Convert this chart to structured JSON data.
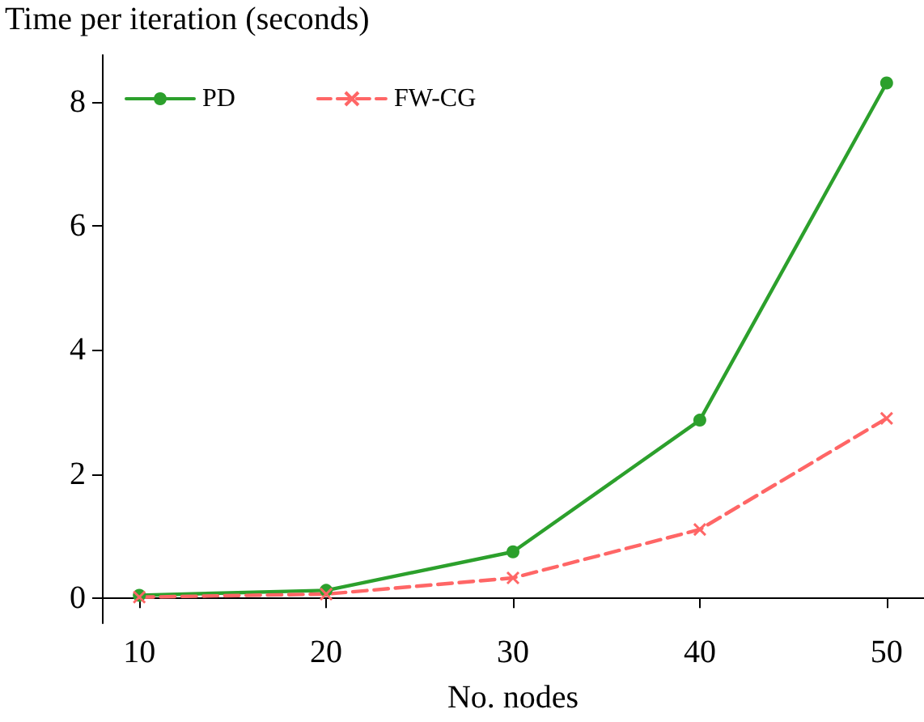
{
  "chart_data": {
    "type": "line",
    "xlabel": "No. nodes",
    "ylabel": "Time per iteration (seconds)",
    "x": [
      10,
      20,
      30,
      40,
      50
    ],
    "series": [
      {
        "name": "PD",
        "color": "#2ca02c",
        "values": [
          0.05,
          0.13,
          0.75,
          2.87,
          8.3
        ],
        "marker": "circle",
        "line_style": "solid"
      },
      {
        "name": "FW-CG",
        "color": "#ff6666",
        "values": [
          0.02,
          0.07,
          0.33,
          1.11,
          2.9
        ],
        "marker": "cross",
        "line_style": "dashed"
      }
    ],
    "xlim": [
      8,
      52
    ],
    "ylim": [
      -0.4,
      8.75
    ],
    "xticks": [
      10,
      20,
      30,
      40,
      50
    ],
    "yticks": [
      0,
      2,
      4,
      6,
      8
    ],
    "grid": false,
    "legend": "top left"
  }
}
